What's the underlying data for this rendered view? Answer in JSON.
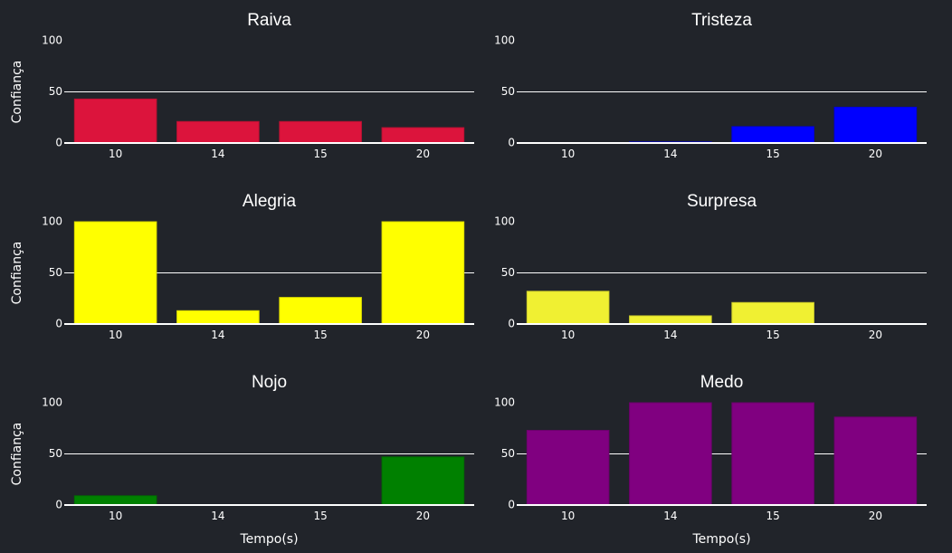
{
  "chart_data": [
    {
      "type": "bar",
      "title": "Raiva",
      "categories": [
        "10",
        "14",
        "15",
        "20"
      ],
      "values": [
        43,
        21,
        21,
        15
      ],
      "color": "#dc143c",
      "ylim": [
        0,
        100
      ],
      "yticks": [
        0,
        50,
        100
      ],
      "ylabel": "Confiança",
      "xlabel": "",
      "grid": true
    },
    {
      "type": "bar",
      "title": "Tristeza",
      "categories": [
        "10",
        "14",
        "15",
        "20"
      ],
      "values": [
        0,
        1,
        16,
        35
      ],
      "color": "#0000ff",
      "ylim": [
        0,
        100
      ],
      "yticks": [
        0,
        50,
        100
      ],
      "ylabel": "",
      "xlabel": "",
      "grid": true
    },
    {
      "type": "bar",
      "title": "Alegria",
      "categories": [
        "10",
        "14",
        "15",
        "20"
      ],
      "values": [
        100,
        13,
        26,
        100
      ],
      "color": "#ffff00",
      "ylim": [
        0,
        100
      ],
      "yticks": [
        0,
        50,
        100
      ],
      "ylabel": "Confiança",
      "xlabel": "",
      "grid": true
    },
    {
      "type": "bar",
      "title": "Surpresa",
      "categories": [
        "10",
        "14",
        "15",
        "20"
      ],
      "values": [
        32,
        8,
        21,
        0
      ],
      "color": "#f0f032",
      "ylim": [
        0,
        100
      ],
      "yticks": [
        0,
        50,
        100
      ],
      "ylabel": "",
      "xlabel": "",
      "grid": true
    },
    {
      "type": "bar",
      "title": "Nojo",
      "categories": [
        "10",
        "14",
        "15",
        "20"
      ],
      "values": [
        9,
        0,
        0,
        47
      ],
      "color": "#008000",
      "ylim": [
        0,
        100
      ],
      "yticks": [
        0,
        50,
        100
      ],
      "ylabel": "Confiança",
      "xlabel": "Tempo(s)",
      "grid": true
    },
    {
      "type": "bar",
      "title": "Medo",
      "categories": [
        "10",
        "14",
        "15",
        "20"
      ],
      "values": [
        73,
        100,
        100,
        86
      ],
      "color": "#800080",
      "ylim": [
        0,
        100
      ],
      "yticks": [
        0,
        50,
        100
      ],
      "ylabel": "",
      "xlabel": "Tempo(s)",
      "grid": true
    }
  ]
}
